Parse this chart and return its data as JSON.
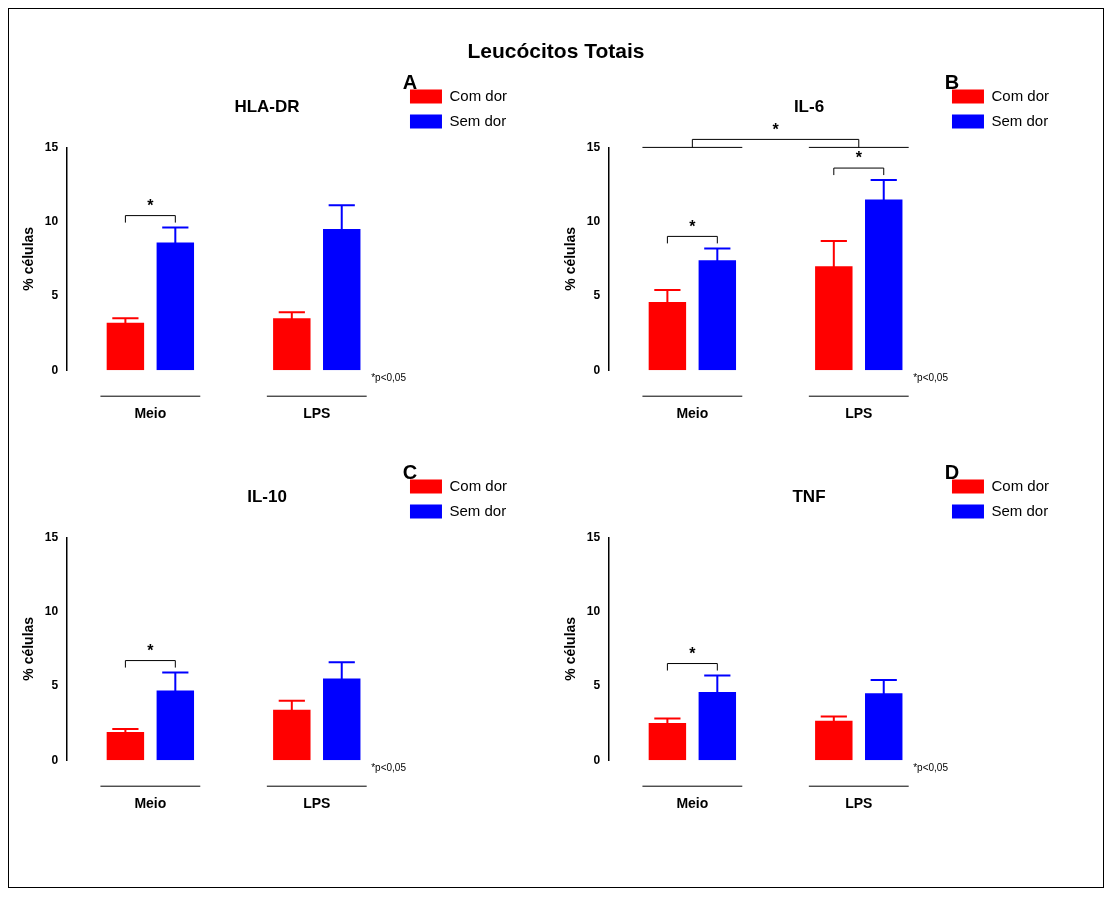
{
  "chart_data": [
    {
      "type": "other",
      "title": "Leucócitos Totais"
    },
    {
      "type": "bar",
      "title": "HLA-DR",
      "subtitle": "A",
      "ylabel": "% células",
      "categories": [
        "Meio",
        "LPS"
      ],
      "ylim": [
        0,
        15
      ],
      "yticks": [
        0,
        5,
        10,
        15
      ],
      "grid": false,
      "legend": "right",
      "series": [
        {
          "name": "Com dor",
          "color": "#ff0000",
          "values": [
            3.2,
            3.5
          ],
          "errors": [
            0.3,
            0.4
          ]
        },
        {
          "name": "Sem dor",
          "color": "#0000ff",
          "values": [
            8.6,
            9.5
          ],
          "errors": [
            1.0,
            1.6
          ]
        }
      ],
      "annotations": [
        "*",
        "*p<0,05"
      ]
    },
    {
      "type": "bar",
      "title": "IL-6",
      "subtitle": "B",
      "ylabel": "% células",
      "categories": [
        "Meio",
        "LPS"
      ],
      "ylim": [
        0,
        15
      ],
      "yticks": [
        0,
        5,
        10,
        15
      ],
      "grid": false,
      "legend": "right",
      "series": [
        {
          "name": "Com dor",
          "color": "#ff0000",
          "values": [
            4.6,
            7.0
          ],
          "errors": [
            0.8,
            1.7
          ]
        },
        {
          "name": "Sem dor",
          "color": "#0000ff",
          "values": [
            7.4,
            11.5
          ],
          "errors": [
            0.8,
            1.3
          ]
        }
      ],
      "annotations": [
        "*",
        "*",
        "*",
        "*p<0,05"
      ]
    },
    {
      "type": "bar",
      "title": "IL-10",
      "subtitle": "C",
      "ylabel": "% células",
      "categories": [
        "Meio",
        "LPS"
      ],
      "ylim": [
        0,
        15
      ],
      "yticks": [
        0,
        5,
        10,
        15
      ],
      "grid": false,
      "legend": "right",
      "series": [
        {
          "name": "Com dor",
          "color": "#ff0000",
          "values": [
            1.9,
            3.4
          ],
          "errors": [
            0.2,
            0.6
          ]
        },
        {
          "name": "Sem dor",
          "color": "#0000ff",
          "values": [
            4.7,
            5.5
          ],
          "errors": [
            1.2,
            1.1
          ]
        }
      ],
      "annotations": [
        "*",
        "*p<0,05"
      ]
    },
    {
      "type": "bar",
      "title": "TNF",
      "subtitle": "D",
      "ylabel": "% células",
      "categories": [
        "Meio",
        "LPS"
      ],
      "ylim": [
        0,
        15
      ],
      "yticks": [
        0,
        5,
        10,
        15
      ],
      "grid": false,
      "legend": "right",
      "series": [
        {
          "name": "Com dor",
          "color": "#ff0000",
          "values": [
            2.5,
            2.65
          ],
          "errors": [
            0.3,
            0.3
          ]
        },
        {
          "name": "Sem dor",
          "color": "#0000ff",
          "values": [
            4.6,
            4.5
          ],
          "errors": [
            1.1,
            0.9
          ]
        }
      ],
      "annotations": [
        "*",
        "*p<0,05"
      ]
    }
  ]
}
